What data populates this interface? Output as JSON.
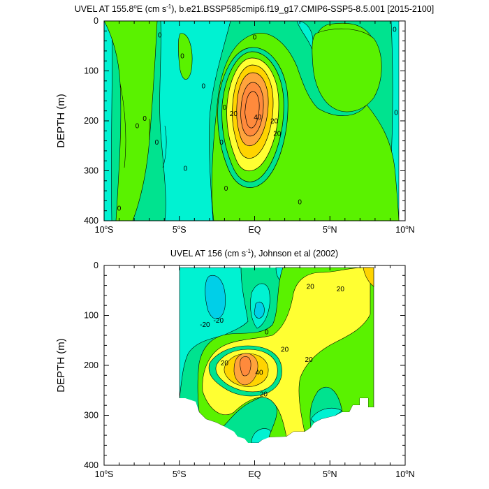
{
  "chart_data": [
    {
      "type": "contour",
      "title": "UVEL AT 155.8°E (cm s-1), b.e21.BSSP585cmip6.f19_g17.CMIP6-SSP5-8.5.001 [2015-2100]",
      "title_parts": {
        "pre": "UVEL AT 155.8",
        "deg": "o",
        "mid": "E (cm s",
        "sup": "-1",
        "post": "), b.e21.BSSP585cmip6.f19_g17.CMIP6-SSP5-8.5.001 [2015-2100]"
      },
      "ylabel": "DEPTH (m)",
      "xlim": [
        -10,
        10
      ],
      "ylim": [
        400,
        0
      ],
      "xticks": [
        {
          "v": -10,
          "pre": "10",
          "deg": "o",
          "post": "S"
        },
        {
          "v": -5,
          "pre": "5",
          "deg": "o",
          "post": "S"
        },
        {
          "v": 0,
          "pre": "EQ",
          "deg": "",
          "post": ""
        },
        {
          "v": 5,
          "pre": "5",
          "deg": "o",
          "post": "N"
        },
        {
          "v": 10,
          "pre": "10",
          "deg": "o",
          "post": "N"
        }
      ],
      "yticks": [
        "0",
        "100",
        "200",
        "300",
        "400"
      ],
      "contour_interval": 10,
      "jet_core": {
        "lon": 0,
        "depth": 165,
        "max_speed": 65
      },
      "contour_labels": [
        {
          "text": "0",
          "lon": -6.3,
          "depth": 28
        },
        {
          "text": "0",
          "lon": -4.8,
          "depth": 70
        },
        {
          "text": "0",
          "lon": -3.4,
          "depth": 130
        },
        {
          "text": "0",
          "lon": -7.3,
          "depth": 195
        },
        {
          "text": "0",
          "lon": -6.5,
          "depth": 243
        },
        {
          "text": "0",
          "lon": -4.6,
          "depth": 295
        },
        {
          "text": "0",
          "lon": -7.8,
          "depth": 210
        },
        {
          "text": "0",
          "lon": -2.2,
          "depth": 243
        },
        {
          "text": "0",
          "lon": -9.0,
          "depth": 375
        },
        {
          "text": "0",
          "lon": 0,
          "depth": 32
        },
        {
          "text": "0",
          "lon": -2.0,
          "depth": 173
        },
        {
          "text": "0",
          "lon": -1.9,
          "depth": 335
        },
        {
          "text": "0",
          "lon": 3.0,
          "depth": 362
        },
        {
          "text": "0",
          "lon": 9.3,
          "depth": 17
        },
        {
          "text": "0",
          "lon": 9.4,
          "depth": 183
        },
        {
          "text": "20",
          "lon": -1.4,
          "depth": 185
        },
        {
          "text": "40",
          "lon": 0.2,
          "depth": 192
        },
        {
          "text": "20",
          "lon": 1.3,
          "depth": 200
        },
        {
          "text": "20",
          "lon": 1.5,
          "depth": 225
        }
      ]
    },
    {
      "type": "contour",
      "title": "UVEL AT 156 (cm s-1), Johnson et al (2002)",
      "title_parts": {
        "pre": "UVEL AT 156 (cm s",
        "sup": "-1",
        "post": "), Johnson et al (2002)"
      },
      "ylabel": "DEPTH (m)",
      "xlim": [
        -10,
        10
      ],
      "ylim": [
        400,
        0
      ],
      "xticks": [
        {
          "v": -10,
          "pre": "10",
          "deg": "o",
          "post": "S"
        },
        {
          "v": -5,
          "pre": "5",
          "deg": "o",
          "post": "S"
        },
        {
          "v": 0,
          "pre": "EQ",
          "deg": "",
          "post": ""
        },
        {
          "v": 5,
          "pre": "5",
          "deg": "o",
          "post": "N"
        },
        {
          "v": 10,
          "pre": "10",
          "deg": "o",
          "post": "N"
        }
      ],
      "yticks": [
        "0",
        "100",
        "200",
        "300",
        "400"
      ],
      "contour_interval": 10,
      "data_coverage_lon": [
        -5,
        8
      ],
      "jet_core": {
        "lon": -0.6,
        "depth": 200,
        "max_speed": 55
      },
      "contour_labels": [
        {
          "text": "-20",
          "lon": -2.4,
          "depth": 110
        },
        {
          "text": "-20",
          "lon": -3.3,
          "depth": 118
        },
        {
          "text": "0",
          "lon": 0.8,
          "depth": 133
        },
        {
          "text": "20",
          "lon": 3.7,
          "depth": 42
        },
        {
          "text": "20",
          "lon": 5.7,
          "depth": 47
        },
        {
          "text": "20",
          "lon": 2.0,
          "depth": 168
        },
        {
          "text": "20",
          "lon": -2.0,
          "depth": 195
        },
        {
          "text": "40",
          "lon": 0.3,
          "depth": 214
        },
        {
          "text": "20",
          "lon": 3.6,
          "depth": 188
        },
        {
          "text": "20",
          "lon": 0.6,
          "depth": 257
        }
      ]
    }
  ]
}
